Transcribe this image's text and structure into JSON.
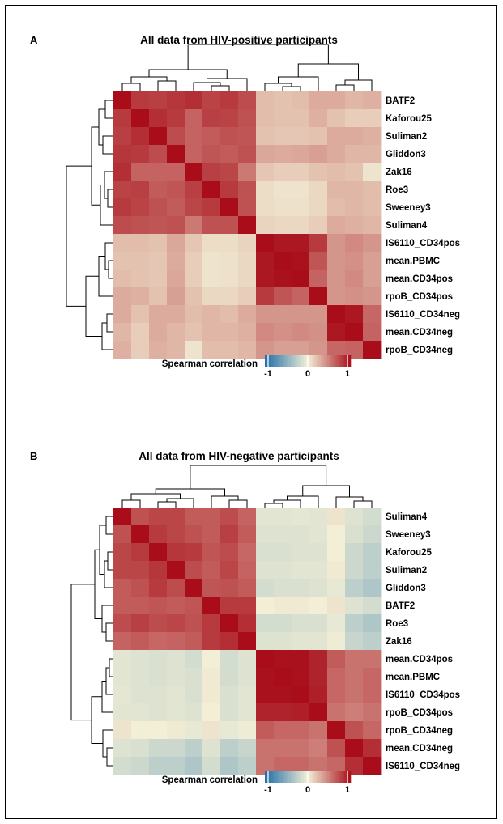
{
  "colors": {
    "neg": "#1f6ea8",
    "mid": "#f2efd6",
    "pos": "#a80d19"
  },
  "chart_data": [
    {
      "type": "heatmap",
      "panel": "A",
      "title": "All data from HIV-positive participants",
      "rows": [
        "BATF2",
        "Kaforou25",
        "Suliman2",
        "Gliddon3",
        "Zak16",
        "Roe3",
        "Sweeney3",
        "Suliman4",
        "IS6110_CD34pos",
        "mean.PBMC",
        "mean.CD34pos",
        "rpoB_CD34pos",
        "IS6110_CD34neg",
        "mean.CD34neg",
        "rpoB_CD34neg"
      ],
      "values": [
        [
          1.0,
          0.8,
          0.78,
          0.82,
          0.85,
          0.76,
          0.8,
          0.72,
          0.22,
          0.2,
          0.22,
          0.3,
          0.3,
          0.25,
          0.28
        ],
        [
          0.8,
          1.0,
          0.85,
          0.8,
          0.62,
          0.78,
          0.76,
          0.7,
          0.22,
          0.2,
          0.2,
          0.28,
          0.2,
          0.15,
          0.15
        ],
        [
          0.78,
          0.85,
          1.0,
          0.72,
          0.62,
          0.65,
          0.7,
          0.68,
          0.2,
          0.18,
          0.18,
          0.2,
          0.3,
          0.3,
          0.28
        ],
        [
          0.82,
          0.8,
          0.72,
          1.0,
          0.62,
          0.68,
          0.65,
          0.7,
          0.32,
          0.3,
          0.32,
          0.35,
          0.3,
          0.25,
          0.25
        ],
        [
          0.85,
          0.62,
          0.62,
          0.62,
          1.0,
          0.78,
          0.75,
          0.52,
          0.18,
          0.15,
          0.15,
          0.2,
          0.22,
          0.2,
          0.05
        ],
        [
          0.76,
          0.78,
          0.65,
          0.68,
          0.78,
          1.0,
          0.8,
          0.7,
          0.08,
          0.05,
          0.05,
          0.1,
          0.25,
          0.25,
          0.22
        ],
        [
          0.8,
          0.76,
          0.7,
          0.65,
          0.75,
          0.8,
          1.0,
          0.7,
          0.08,
          0.06,
          0.06,
          0.1,
          0.22,
          0.25,
          0.22
        ],
        [
          0.72,
          0.7,
          0.68,
          0.7,
          0.52,
          0.7,
          0.7,
          1.0,
          0.12,
          0.1,
          0.1,
          0.15,
          0.3,
          0.28,
          0.25
        ],
        [
          0.22,
          0.22,
          0.2,
          0.32,
          0.18,
          0.08,
          0.08,
          0.12,
          1.0,
          0.95,
          0.95,
          0.8,
          0.4,
          0.45,
          0.4
        ],
        [
          0.2,
          0.2,
          0.18,
          0.3,
          0.15,
          0.05,
          0.06,
          0.1,
          0.95,
          1.0,
          0.98,
          0.68,
          0.4,
          0.42,
          0.35
        ],
        [
          0.22,
          0.2,
          0.18,
          0.32,
          0.15,
          0.05,
          0.06,
          0.1,
          0.95,
          0.98,
          1.0,
          0.62,
          0.4,
          0.45,
          0.35
        ],
        [
          0.3,
          0.28,
          0.2,
          0.35,
          0.2,
          0.1,
          0.1,
          0.15,
          0.8,
          0.68,
          0.62,
          1.0,
          0.4,
          0.42,
          0.4
        ],
        [
          0.3,
          0.2,
          0.3,
          0.3,
          0.22,
          0.25,
          0.22,
          0.3,
          0.4,
          0.4,
          0.4,
          0.4,
          1.0,
          0.95,
          0.6
        ],
        [
          0.25,
          0.15,
          0.3,
          0.25,
          0.2,
          0.25,
          0.25,
          0.28,
          0.45,
          0.42,
          0.45,
          0.42,
          0.95,
          1.0,
          0.62
        ],
        [
          0.28,
          0.15,
          0.28,
          0.25,
          0.05,
          0.22,
          0.22,
          0.25,
          0.4,
          0.35,
          0.35,
          0.4,
          0.6,
          0.62,
          1.0
        ]
      ],
      "legend": {
        "label": "Spearman correlation",
        "ticks": [
          "-1",
          "0",
          "1"
        ],
        "tick_values": [
          -1,
          0,
          1
        ],
        "range": [
          -1,
          1
        ]
      }
    },
    {
      "type": "heatmap",
      "panel": "B",
      "title": "All data from HIV-negative participants",
      "rows": [
        "Suliman4",
        "Sweeney3",
        "Kaforou25",
        "Suliman2",
        "Gliddon3",
        "BATF2",
        "Roe3",
        "Zak16",
        "mean.CD34pos",
        "mean.PBMC",
        "IS6110_CD34pos",
        "rpoB_CD34pos",
        "rpoB_CD34neg",
        "mean.CD34neg",
        "IS6110_CD34neg"
      ],
      "values": [
        [
          1.0,
          0.7,
          0.75,
          0.75,
          0.65,
          0.65,
          0.72,
          0.62,
          -0.08,
          -0.08,
          -0.06,
          -0.08,
          0.05,
          -0.1,
          -0.15
        ],
        [
          0.7,
          1.0,
          0.8,
          0.75,
          0.7,
          0.65,
          0.78,
          0.65,
          -0.1,
          -0.1,
          -0.1,
          -0.08,
          0.0,
          -0.12,
          -0.18
        ],
        [
          0.75,
          0.8,
          1.0,
          0.82,
          0.8,
          0.68,
          0.72,
          0.6,
          -0.12,
          -0.12,
          -0.1,
          -0.1,
          0.0,
          -0.18,
          -0.25
        ],
        [
          0.75,
          0.75,
          0.82,
          1.0,
          0.72,
          0.65,
          0.75,
          0.62,
          -0.1,
          -0.1,
          -0.08,
          -0.08,
          0.02,
          -0.18,
          -0.25
        ],
        [
          0.65,
          0.7,
          0.8,
          0.72,
          1.0,
          0.68,
          0.7,
          0.65,
          -0.15,
          -0.12,
          -0.12,
          -0.1,
          -0.05,
          -0.25,
          -0.32
        ],
        [
          0.65,
          0.65,
          0.68,
          0.65,
          0.68,
          1.0,
          0.8,
          0.8,
          0.0,
          0.02,
          0.02,
          0.0,
          0.05,
          -0.1,
          -0.15
        ],
        [
          0.72,
          0.78,
          0.72,
          0.75,
          0.7,
          0.8,
          1.0,
          0.85,
          -0.15,
          -0.15,
          -0.12,
          -0.12,
          -0.05,
          -0.25,
          -0.32
        ],
        [
          0.62,
          0.65,
          0.6,
          0.62,
          0.65,
          0.8,
          0.85,
          1.0,
          -0.1,
          -0.1,
          -0.08,
          -0.08,
          -0.02,
          -0.2,
          -0.25
        ],
        [
          -0.08,
          -0.1,
          -0.12,
          -0.1,
          -0.15,
          0.0,
          -0.15,
          -0.1,
          1.0,
          0.98,
          0.98,
          0.9,
          0.65,
          0.55,
          0.55
        ],
        [
          -0.08,
          -0.1,
          -0.12,
          -0.1,
          -0.12,
          0.02,
          -0.15,
          -0.1,
          0.98,
          1.0,
          0.98,
          0.9,
          0.6,
          0.55,
          0.6
        ],
        [
          -0.06,
          -0.1,
          -0.1,
          -0.08,
          -0.12,
          0.02,
          -0.12,
          -0.08,
          0.98,
          0.98,
          1.0,
          0.92,
          0.6,
          0.55,
          0.6
        ],
        [
          -0.08,
          -0.08,
          -0.1,
          -0.08,
          -0.1,
          0.0,
          -0.12,
          -0.08,
          0.9,
          0.9,
          0.92,
          1.0,
          0.55,
          0.5,
          0.55
        ],
        [
          0.05,
          0.0,
          0.0,
          0.02,
          -0.05,
          0.05,
          -0.05,
          -0.02,
          0.65,
          0.6,
          0.6,
          0.55,
          1.0,
          0.7,
          0.6
        ],
        [
          -0.1,
          -0.12,
          -0.18,
          -0.18,
          -0.25,
          -0.1,
          -0.25,
          -0.2,
          0.55,
          0.55,
          0.55,
          0.5,
          0.7,
          1.0,
          0.85
        ],
        [
          -0.15,
          -0.18,
          -0.25,
          -0.25,
          -0.32,
          -0.15,
          -0.32,
          -0.25,
          0.55,
          0.6,
          0.6,
          0.55,
          0.6,
          0.85,
          1.0
        ]
      ],
      "legend": {
        "label": "Spearman correlation",
        "ticks": [
          "-1",
          "0",
          "1"
        ],
        "tick_values": [
          -1,
          0,
          1
        ],
        "range": [
          -1,
          1
        ]
      }
    }
  ]
}
